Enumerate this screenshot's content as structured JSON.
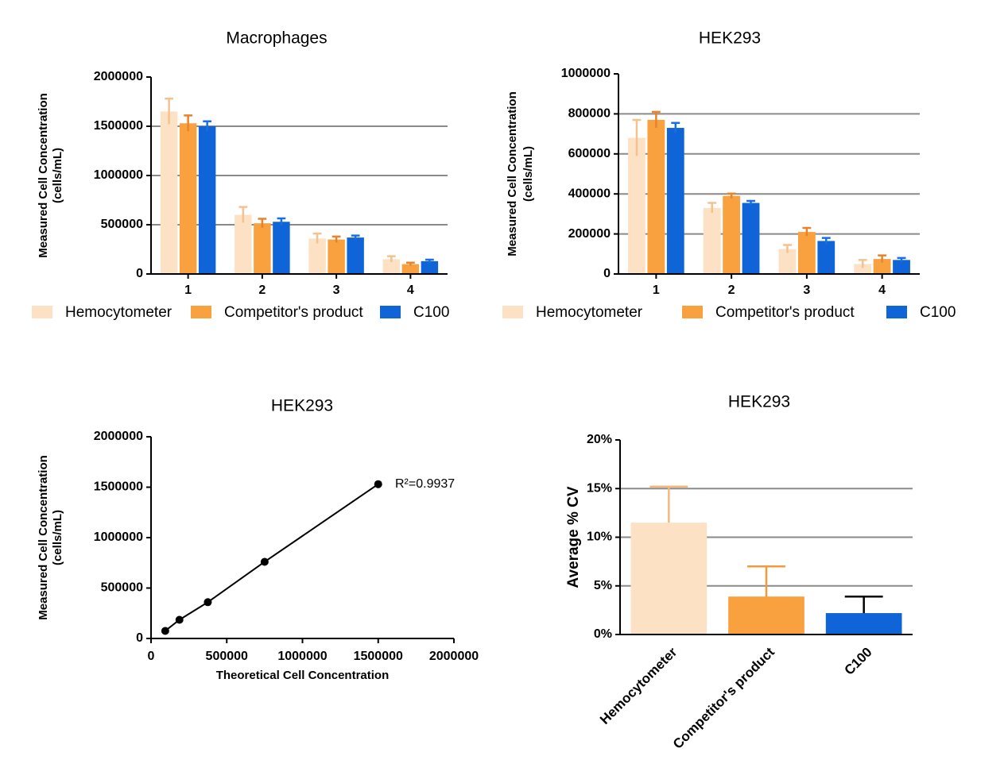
{
  "chart_data": [
    {
      "type": "bar",
      "title": "Macrophages",
      "ylabel": [
        "Measured Cell Concentration",
        "(cells/mL)"
      ],
      "categories": [
        "1",
        "2",
        "3",
        "4"
      ],
      "series": [
        {
          "name": "Hemocytometer",
          "color": "#fde1c4",
          "error_color": "#f4c28e",
          "values": [
            1650000,
            600000,
            360000,
            150000
          ],
          "errors": [
            130000,
            80000,
            50000,
            30000
          ]
        },
        {
          "name": "Competitor's product",
          "color": "#f9a03f",
          "error_color": "#e8832a",
          "values": [
            1530000,
            515000,
            350000,
            100000
          ],
          "errors": [
            80000,
            45000,
            30000,
            15000
          ]
        },
        {
          "name": "C100",
          "color": "#0f64d8",
          "error_color": "#1a6fe0",
          "values": [
            1500000,
            530000,
            370000,
            130000
          ],
          "errors": [
            50000,
            35000,
            20000,
            15000
          ]
        }
      ],
      "ylim": [
        0,
        2000000
      ],
      "yticks": [
        0,
        500000,
        1000000,
        1500000,
        2000000
      ],
      "grid": true,
      "legend": "bottom"
    },
    {
      "type": "bar",
      "title": "HEK293",
      "ylabel": [
        "Measured Cell Concentration",
        "(cells/mL)"
      ],
      "categories": [
        "1",
        "2",
        "3",
        "4"
      ],
      "series": [
        {
          "name": "Hemocytometer",
          "color": "#fde1c4",
          "error_color": "#f4c28e",
          "values": [
            680000,
            330000,
            125000,
            50000
          ],
          "errors": [
            90000,
            25000,
            20000,
            20000
          ]
        },
        {
          "name": "Competitor's product",
          "color": "#f9a03f",
          "error_color": "#e8832a",
          "values": [
            770000,
            390000,
            210000,
            75000
          ],
          "errors": [
            40000,
            12000,
            20000,
            18000
          ]
        },
        {
          "name": "C100",
          "color": "#0f64d8",
          "error_color": "#1a6fe0",
          "values": [
            730000,
            355000,
            165000,
            70000
          ],
          "errors": [
            25000,
            10000,
            15000,
            10000
          ]
        }
      ],
      "ylim": [
        0,
        1000000
      ],
      "yticks": [
        0,
        200000,
        400000,
        600000,
        800000,
        1000000
      ],
      "grid": true,
      "legend": "bottom"
    },
    {
      "type": "scatter",
      "title": "HEK293",
      "ylabel": [
        "Measured Cell Concentration",
        "(cells/mL)"
      ],
      "xlabel": "Theoretical Cell Concentration",
      "x": [
        93750,
        187500,
        375000,
        750000,
        1500000
      ],
      "values": [
        75000,
        185000,
        360000,
        760000,
        1530000
      ],
      "color": "#000000",
      "annotation": "R²=0.9937",
      "xlim": [
        0,
        2000000
      ],
      "xticks": [
        0,
        500000,
        1000000,
        1500000,
        2000000
      ],
      "ylim": [
        0,
        2000000
      ],
      "yticks": [
        0,
        500000,
        1000000,
        1500000,
        2000000
      ],
      "grid": false
    },
    {
      "type": "bar",
      "title": "HEK293",
      "ylabel": [
        "Average % CV"
      ],
      "categories": [
        "Hemocytometer",
        "Competitor's product",
        "C100"
      ],
      "values": [
        11.5,
        3.9,
        2.2
      ],
      "errors": [
        3.7,
        3.1,
        1.7
      ],
      "colors": [
        "#fde1c4",
        "#f9a03f",
        "#0f64d8"
      ],
      "error_colors": [
        "#f4b87c",
        "#f29a3c",
        "#000000"
      ],
      "ylim": [
        0,
        20
      ],
      "yticks": [
        {
          "value": 0,
          "label": "0%"
        },
        {
          "value": 5,
          "label": "5%"
        },
        {
          "value": 10,
          "label": "10%"
        },
        {
          "value": 15,
          "label": "15%"
        },
        {
          "value": 20,
          "label": "20%"
        }
      ],
      "grid": true
    }
  ]
}
